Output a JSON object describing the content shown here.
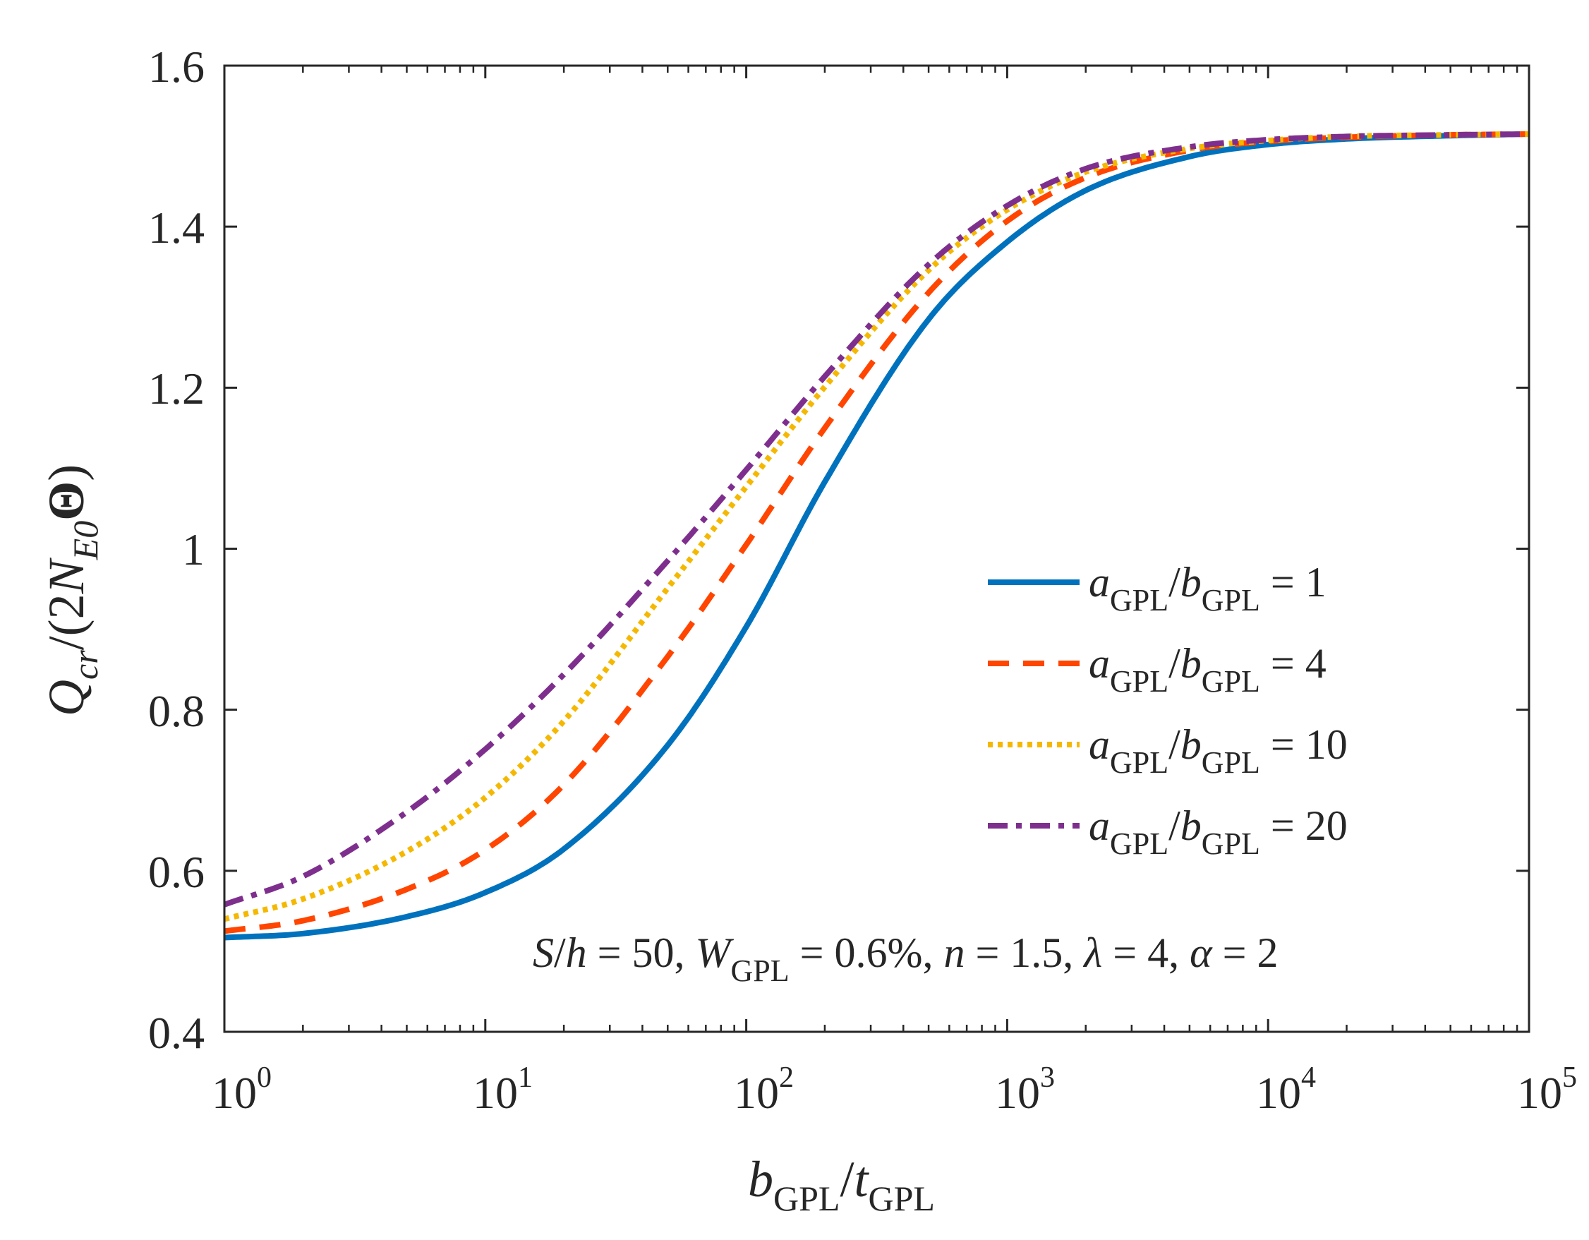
{
  "chart_data": {
    "type": "line",
    "x_scale": "log",
    "xlim": [
      1,
      100000
    ],
    "ylim": [
      0.4,
      1.6
    ],
    "x": [
      1,
      2,
      5,
      10,
      20,
      50,
      100,
      200,
      500,
      1000,
      2000,
      5000,
      10000,
      20000,
      50000,
      100000
    ],
    "xlabel": {
      "b": "b",
      "sub1": "GPL",
      "slash": "/",
      "t": "t",
      "sub2": "GPL"
    },
    "ylabel": {
      "Q": "Q",
      "sub_cr": "cr",
      "mid": "/(2",
      "N": "N",
      "sub_E0": "E0",
      "theta": "Θ",
      "close": ")"
    },
    "x_ticks": [
      {
        "value": 1,
        "base": "10",
        "exp": "0"
      },
      {
        "value": 10,
        "base": "10",
        "exp": "1"
      },
      {
        "value": 100,
        "base": "10",
        "exp": "2"
      },
      {
        "value": 1000,
        "base": "10",
        "exp": "3"
      },
      {
        "value": 10000,
        "base": "10",
        "exp": "4"
      },
      {
        "value": 100000,
        "base": "10",
        "exp": "5"
      }
    ],
    "y_ticks": [
      {
        "value": 0.4,
        "label": "0.4"
      },
      {
        "value": 0.6,
        "label": "0.6"
      },
      {
        "value": 0.8,
        "label": "0.8"
      },
      {
        "value": 1.0,
        "label": "1"
      },
      {
        "value": 1.2,
        "label": "1.2"
      },
      {
        "value": 1.4,
        "label": "1.4"
      },
      {
        "value": 1.6,
        "label": "1.6"
      }
    ],
    "grid": false,
    "legend_position": "right-middle",
    "series": [
      {
        "name": "aGPL/bGPL = 1",
        "a": "a",
        "sub_a": "GPL",
        "slash": "/",
        "b": "b",
        "sub_b": "GPL",
        "eq": " = 1",
        "color": "#0072BD",
        "style": "solid",
        "values": [
          0.517,
          0.522,
          0.543,
          0.573,
          0.627,
          0.756,
          0.903,
          1.083,
          1.285,
          1.381,
          1.445,
          1.487,
          1.502,
          1.509,
          1.513,
          1.515
        ]
      },
      {
        "name": "aGPL/bGPL = 4",
        "a": "a",
        "sub_a": "GPL",
        "slash": "/",
        "b": "b",
        "sub_b": "GPL",
        "eq": " = 4",
        "color": "#FF4500",
        "style": "dashed",
        "values": [
          0.525,
          0.538,
          0.577,
          0.626,
          0.707,
          0.866,
          1.005,
          1.15,
          1.318,
          1.407,
          1.461,
          1.495,
          1.506,
          1.511,
          1.514,
          1.515
        ]
      },
      {
        "name": "aGPL/bGPL = 10",
        "a": "a",
        "sub_a": "GPL",
        "slash": "/",
        "b": "b",
        "sub_b": "GPL",
        "eq": " = 10",
        "color": "#F5B800",
        "style": "dotted",
        "values": [
          0.54,
          0.565,
          0.624,
          0.691,
          0.786,
          0.951,
          1.077,
          1.201,
          1.346,
          1.421,
          1.468,
          1.497,
          1.507,
          1.512,
          1.514,
          1.515
        ]
      },
      {
        "name": "aGPL/bGPL = 20",
        "a": "a",
        "sub_a": "GPL",
        "slash": "/",
        "b": "b",
        "sub_b": "GPL",
        "eq": " = 20",
        "color": "#7E2F8E",
        "style": "dashdot",
        "values": [
          0.558,
          0.593,
          0.673,
          0.751,
          0.844,
          0.985,
          1.098,
          1.214,
          1.353,
          1.426,
          1.472,
          1.499,
          1.508,
          1.512,
          1.514,
          1.515
        ]
      }
    ],
    "annotation": {
      "S": "S",
      "slash_h": "/",
      "h": "h",
      "eq1": " = 50, ",
      "W": "W",
      "sub_W": "GPL",
      "eq2": " = 0.6%, ",
      "n": "n",
      "eq3": " = 1.5, ",
      "lambda": "λ",
      "eq4": " = 4, ",
      "alpha": "α",
      "eq5": " = 2"
    }
  }
}
